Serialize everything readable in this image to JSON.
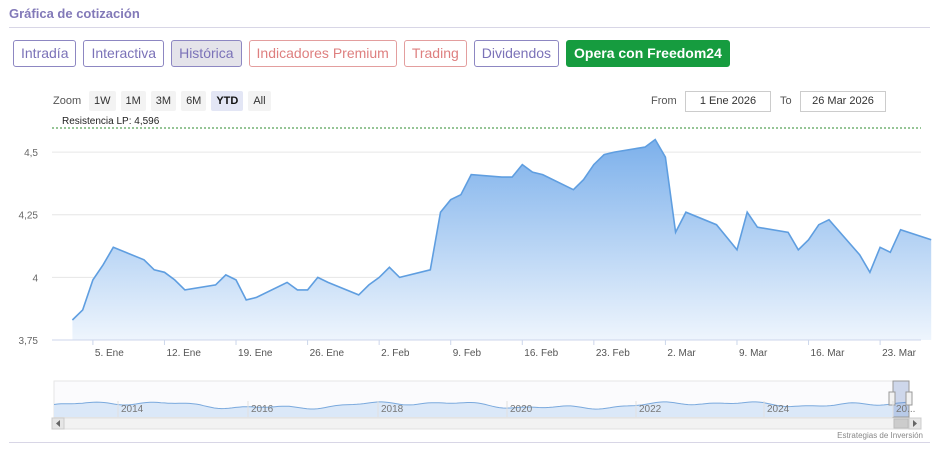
{
  "section_title": "Gráfica de cotización",
  "tabs": [
    {
      "label": "Intradía",
      "style": "normal"
    },
    {
      "label": "Interactiva",
      "style": "normal"
    },
    {
      "label": "Histórica",
      "style": "active"
    },
    {
      "label": "Indicadores Premium",
      "style": "premium"
    },
    {
      "label": "Trading",
      "style": "premium"
    },
    {
      "label": "Dividendos",
      "style": "normal"
    },
    {
      "label": "Opera con Freedom24",
      "style": "cta"
    }
  ],
  "zoom": {
    "label": "Zoom",
    "options": [
      "1W",
      "1M",
      "3M",
      "6M",
      "YTD",
      "All"
    ],
    "selected": "YTD"
  },
  "range": {
    "from_label": "From",
    "from_value": "1 Ene 2026",
    "to_label": "To",
    "to_value": "26 Mar 2026"
  },
  "colors": {
    "accent": "#7b72b8",
    "premium": "#de7f7f",
    "cta": "#169c3f",
    "line": "#5f9ee0",
    "fill_top": "#7cb0eb",
    "fill_bottom": "#eef5fd",
    "resistance": "#2e8b2e"
  },
  "chart_data": {
    "type": "area",
    "title": "",
    "xlabel": "",
    "ylabel": "",
    "ylim": [
      3.75,
      4.62
    ],
    "y_ticks": [
      {
        "value": 3.75,
        "label": "3,75"
      },
      {
        "value": 4.0,
        "label": "4"
      },
      {
        "value": 4.25,
        "label": "4,25"
      },
      {
        "value": 4.5,
        "label": "4,5"
      }
    ],
    "x_ticks": [
      "5. Ene",
      "12. Ene",
      "19. Ene",
      "26. Ene",
      "2. Feb",
      "9. Feb",
      "16. Feb",
      "23. Feb",
      "2. Mar",
      "9. Mar",
      "16. Mar",
      "23. Mar"
    ],
    "x_tick_days": [
      4,
      11,
      18,
      25,
      32,
      39,
      46,
      53,
      60,
      67,
      74,
      81
    ],
    "x_range_days": [
      0,
      85
    ],
    "grid": true,
    "legend": "none",
    "series": [
      {
        "points": [
          [
            0,
            3.83
          ],
          [
            1,
            3.87
          ],
          [
            2,
            3.99
          ],
          [
            3,
            4.05
          ],
          [
            4,
            4.12
          ],
          [
            5,
            4.07
          ],
          [
            6,
            4.03
          ],
          [
            7,
            4.02
          ],
          [
            8,
            3.99
          ],
          [
            9,
            3.95
          ],
          [
            10,
            3.97
          ],
          [
            11,
            4.01
          ],
          [
            12,
            3.99
          ],
          [
            13,
            3.91
          ],
          [
            14,
            3.92
          ],
          [
            15,
            3.98
          ],
          [
            16,
            3.95
          ],
          [
            17,
            3.95
          ],
          [
            18,
            4.0
          ],
          [
            19,
            3.98
          ],
          [
            20,
            3.93
          ],
          [
            21,
            3.97
          ],
          [
            22,
            4.0
          ],
          [
            23,
            4.04
          ],
          [
            24,
            4.0
          ],
          [
            25,
            4.03
          ],
          [
            26,
            4.26
          ],
          [
            27,
            4.31
          ],
          [
            28,
            4.33
          ],
          [
            29,
            4.41
          ],
          [
            30,
            4.4
          ],
          [
            31,
            4.4
          ],
          [
            32,
            4.45
          ],
          [
            33,
            4.42
          ],
          [
            34,
            4.41
          ],
          [
            35,
            4.35
          ],
          [
            36,
            4.39
          ],
          [
            37,
            4.45
          ],
          [
            38,
            4.49
          ],
          [
            39,
            4.5
          ],
          [
            40,
            4.52
          ],
          [
            41,
            4.55
          ],
          [
            42,
            4.48
          ],
          [
            43,
            4.18
          ],
          [
            44,
            4.26
          ],
          [
            45,
            4.21
          ],
          [
            46,
            4.16
          ],
          [
            47,
            4.11
          ],
          [
            48,
            4.26
          ],
          [
            49,
            4.2
          ],
          [
            50,
            4.18
          ],
          [
            51,
            4.11
          ],
          [
            52,
            4.15
          ],
          [
            53,
            4.21
          ],
          [
            54,
            4.23
          ],
          [
            55,
            4.09
          ],
          [
            56,
            4.02
          ],
          [
            57,
            4.12
          ],
          [
            58,
            4.1
          ],
          [
            59,
            4.19
          ],
          [
            60,
            4.15
          ]
        ]
      }
    ],
    "resistance": {
      "label": "Resistencia LP: 4,596",
      "value": 4.596
    },
    "navigator": {
      "year_labels": [
        "2014",
        "2016",
        "2018",
        "2020",
        "2022",
        "2024",
        "20..."
      ]
    },
    "credit": "Estrategias de Inversión"
  }
}
